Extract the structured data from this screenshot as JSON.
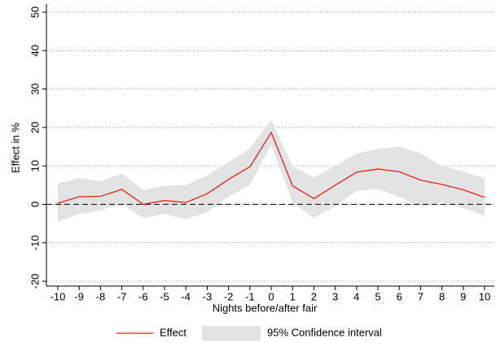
{
  "chart_data": {
    "type": "line",
    "xlabel": "Nights before/after fair",
    "ylabel": "Effect in %",
    "x": [
      -10,
      -9,
      -8,
      -7,
      -6,
      -5,
      -4,
      -3,
      -2,
      -1,
      0,
      1,
      2,
      3,
      4,
      5,
      6,
      7,
      8,
      9,
      10
    ],
    "series": [
      {
        "name": "Effect",
        "color": "#e8201c",
        "values": [
          0.3,
          2,
          2.1,
          3.9,
          0,
          1,
          0.5,
          2.8,
          6.5,
          9.8,
          18.7,
          4.8,
          1.5,
          5,
          8.4,
          9.2,
          8.5,
          6.3,
          5.2,
          3.8,
          1.8
        ]
      }
    ],
    "band": {
      "name": "95% Confidence interval",
      "color": "#e3e3e3",
      "lower": [
        -4.5,
        -2.5,
        -1.5,
        0,
        -3.5,
        -2.5,
        -3.8,
        -2,
        2,
        5,
        15.5,
        0.5,
        -3.5,
        -0.5,
        3.5,
        4,
        2,
        -0.5,
        0.5,
        -1,
        -3
      ],
      "upper": [
        5.5,
        6.8,
        6,
        8,
        3.8,
        4.8,
        5,
        7.5,
        11,
        14.5,
        22,
        10,
        7,
        10,
        13.2,
        14.5,
        15,
        13.2,
        10,
        8.5,
        6.8
      ]
    },
    "reference_line": 0,
    "xlim": [
      -10,
      10
    ],
    "xticks": [
      -10,
      -9,
      -8,
      -7,
      -6,
      -5,
      -4,
      -3,
      -2,
      -1,
      0,
      1,
      2,
      3,
      4,
      5,
      6,
      7,
      8,
      9,
      10
    ],
    "ylim": [
      -20,
      50
    ],
    "yticks": [
      -20,
      -10,
      0,
      10,
      20,
      30,
      40,
      50
    ],
    "grid": true
  }
}
